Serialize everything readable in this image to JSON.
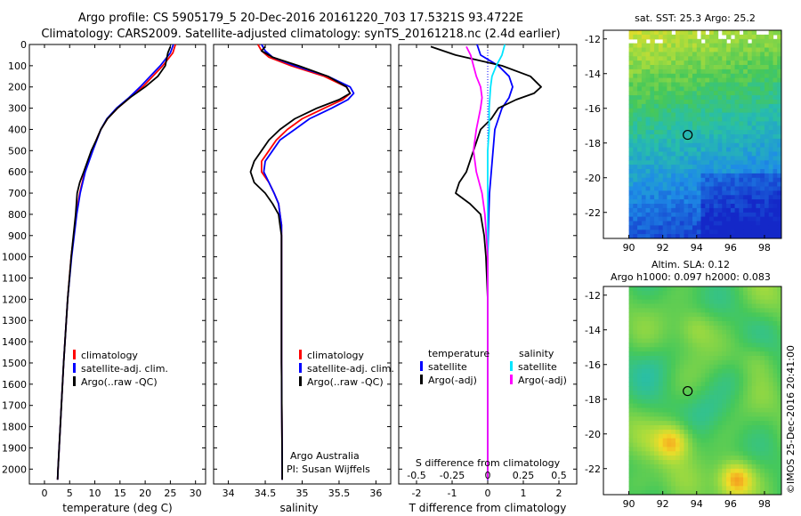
{
  "header": {
    "title_line1": "Argo profile: CS 5905179_5 20-Dec-2016 20161220_703 17.5321S 93.4722E",
    "title_line2": "Climatology: CARS2009. Satellite-adjusted climatology: synTS_20161218.nc (2.4d earlier)"
  },
  "credit": "©IMOS 25-Dec-2016 20:41:00",
  "colors": {
    "climatology": "#ff0000",
    "satellite": "#0000ff",
    "argo": "#000000",
    "sal_satellite": "#00e5ff",
    "sal_argo": "#ff00ff",
    "zero_line": "#0000ff"
  },
  "chart_data": [
    {
      "id": "temperature",
      "type": "line",
      "xlabel": "temperature (deg C)",
      "ylabel": "",
      "xlim": [
        -3,
        32
      ],
      "ylim": [
        2070,
        0
      ],
      "xticks": [
        "0",
        "5",
        "10",
        "15",
        "20",
        "25",
        "30"
      ],
      "yticks": [
        "0",
        "100",
        "200",
        "300",
        "400",
        "500",
        "600",
        "700",
        "800",
        "900",
        "1000",
        "1100",
        "1200",
        "1300",
        "1400",
        "1500",
        "1600",
        "1700",
        "1800",
        "1900",
        "2000"
      ],
      "legend": [
        "climatology",
        "satellite-adj. clim.",
        "Argo(..raw -QC)"
      ],
      "series": [
        {
          "name": "climatology",
          "color": "#ff0000",
          "depth": [
            0,
            40,
            100,
            150,
            200,
            250,
            300,
            350,
            400,
            450,
            500,
            600,
            700,
            800,
            1000,
            1200,
            1500,
            2000,
            2050
          ],
          "values": [
            26,
            25.5,
            23.5,
            21.5,
            19.5,
            17,
            14.5,
            12.5,
            11.2,
            10.3,
            9.5,
            8,
            7,
            6.3,
            5.3,
            4.6,
            3.8,
            2.7,
            2.6
          ]
        },
        {
          "name": "satellite-adj. clim.",
          "color": "#0000ff",
          "depth": [
            0,
            40,
            100,
            150,
            200,
            250,
            300,
            350,
            400,
            450,
            500,
            600,
            700,
            800,
            1000,
            1200,
            1500,
            2000,
            2050
          ],
          "values": [
            25.6,
            25,
            23,
            21,
            19,
            16.8,
            14.3,
            12.4,
            11.2,
            10.4,
            9.6,
            8.1,
            7.1,
            6.4,
            5.4,
            4.6,
            3.8,
            2.7,
            2.6
          ]
        },
        {
          "name": "Argo(..raw -QC)",
          "color": "#000000",
          "depth": [
            10,
            40,
            100,
            150,
            200,
            250,
            300,
            350,
            400,
            450,
            500,
            600,
            650,
            700,
            800,
            1000,
            1200,
            1500,
            2000,
            2050
          ],
          "values": [
            25,
            24.5,
            24,
            22.5,
            20,
            17,
            14.5,
            12.5,
            11.2,
            10.3,
            9.3,
            7.8,
            7.0,
            6.5,
            6.2,
            5.3,
            4.6,
            3.8,
            2.7,
            2.6
          ]
        }
      ]
    },
    {
      "id": "salinity",
      "type": "line",
      "xlabel": "salinity",
      "ylabel": "",
      "xlim": [
        33.8,
        36.2
      ],
      "ylim": [
        2070,
        0
      ],
      "xticks": [
        "34",
        "34.5",
        "35",
        "35.5",
        "36"
      ],
      "legend": [
        "climatology",
        "satellite-adj. clim.",
        "Argo(..raw -QC)"
      ],
      "annotation_line1": "Argo Australia",
      "annotation_line2": "PI: Susan Wijffels",
      "series": [
        {
          "name": "climatology",
          "color": "#ff0000",
          "depth": [
            0,
            30,
            60,
            100,
            150,
            200,
            230,
            260,
            300,
            350,
            400,
            450,
            500,
            550,
            600,
            650,
            700,
            750,
            800,
            850,
            900,
            1000,
            1500,
            2000,
            2050
          ],
          "values": [
            34.4,
            34.45,
            34.55,
            34.85,
            35.3,
            35.6,
            35.65,
            35.55,
            35.3,
            35.0,
            34.8,
            34.65,
            34.55,
            34.45,
            34.45,
            34.55,
            34.62,
            34.68,
            34.7,
            34.72,
            34.72,
            34.72,
            34.72,
            34.73,
            34.73
          ]
        },
        {
          "name": "satellite-adj. clim.",
          "color": "#0000ff",
          "depth": [
            0,
            30,
            60,
            100,
            150,
            200,
            230,
            260,
            300,
            350,
            400,
            450,
            500,
            550,
            600,
            650,
            700,
            750,
            800,
            850,
            900,
            1000,
            1500,
            2000,
            2050
          ],
          "values": [
            34.45,
            34.5,
            34.6,
            34.9,
            35.35,
            35.65,
            35.7,
            35.62,
            35.4,
            35.1,
            34.9,
            34.7,
            34.6,
            34.5,
            34.48,
            34.55,
            34.62,
            34.68,
            34.7,
            34.72,
            34.72,
            34.72,
            34.72,
            34.73,
            34.73
          ]
        },
        {
          "name": "Argo(..raw -QC)",
          "color": "#000000",
          "depth": [
            10,
            30,
            60,
            100,
            150,
            200,
            230,
            260,
            300,
            350,
            400,
            450,
            500,
            550,
            600,
            650,
            700,
            750,
            800,
            850,
            900,
            1000,
            1500,
            2000,
            2050
          ],
          "values": [
            34.5,
            34.45,
            34.6,
            34.95,
            35.35,
            35.6,
            35.65,
            35.5,
            35.2,
            34.9,
            34.7,
            34.55,
            34.45,
            34.35,
            34.3,
            34.35,
            34.5,
            34.6,
            34.68,
            34.7,
            34.72,
            34.72,
            34.72,
            34.73,
            34.73
          ]
        }
      ]
    },
    {
      "id": "difference",
      "type": "line",
      "xlabel": "T difference from climatology",
      "xlabel_top": "S difference from climatology",
      "xlim": [
        -2.5,
        2.5
      ],
      "ylim": [
        2070,
        0
      ],
      "xticks": [
        "-2",
        "-1",
        "0",
        "1",
        "2"
      ],
      "xticks_top": [
        "-0.5",
        "-0.25",
        "0",
        "0.25",
        "0.5"
      ],
      "legend_left_title": "temperature",
      "legend_right_title": "salinity",
      "legend": [
        "satellite",
        "Argo(-adj)",
        "satellite",
        "Argo(-adj)"
      ],
      "series": [
        {
          "name": "satellite",
          "variable": "temperature",
          "color": "#0000ff",
          "depth": [
            0,
            50,
            100,
            150,
            200,
            250,
            300,
            350,
            400,
            500,
            600,
            700,
            800,
            1000,
            1500,
            2000,
            2050
          ],
          "values": [
            -0.3,
            -0.2,
            0.3,
            0.6,
            0.7,
            0.6,
            0.4,
            0.3,
            0.2,
            0.15,
            0.1,
            0.05,
            0.03,
            0.0,
            0.0,
            0.0,
            0.0
          ]
        },
        {
          "name": "Argo(-adj)",
          "variable": "temperature",
          "color": "#000000",
          "depth": [
            10,
            50,
            100,
            150,
            200,
            230,
            260,
            300,
            350,
            400,
            500,
            600,
            650,
            700,
            750,
            800,
            900,
            1000,
            1200,
            1500,
            2000,
            2050
          ],
          "values": [
            -1.6,
            -0.9,
            0.4,
            1.2,
            1.5,
            1.3,
            0.8,
            0.3,
            0.1,
            -0.2,
            -0.4,
            -0.6,
            -0.8,
            -0.9,
            -0.5,
            -0.2,
            -0.1,
            -0.05,
            0.0,
            0.0,
            0.0,
            0.0
          ]
        },
        {
          "name": "satellite",
          "variable": "salinity",
          "color": "#00e5ff",
          "depth": [
            0,
            50,
            100,
            150,
            200,
            300,
            400,
            500,
            600,
            800,
            1000,
            1500,
            2000,
            2050
          ],
          "values": [
            0.12,
            0.1,
            0.06,
            0.03,
            0.02,
            0.01,
            0.01,
            0.0,
            0.0,
            0.0,
            0.0,
            0.0,
            0.0,
            0.0
          ]
        },
        {
          "name": "Argo(-adj)",
          "variable": "salinity",
          "color": "#ff00ff",
          "depth": [
            10,
            50,
            100,
            150,
            200,
            250,
            300,
            400,
            500,
            600,
            700,
            800,
            1000,
            1500,
            2000,
            2050
          ],
          "values": [
            -0.15,
            -0.12,
            -0.1,
            -0.08,
            -0.05,
            -0.04,
            -0.05,
            -0.08,
            -0.1,
            -0.08,
            -0.04,
            -0.02,
            0.0,
            0.0,
            0.0,
            0.0
          ]
        }
      ]
    },
    {
      "id": "sst_map",
      "type": "heatmap",
      "title": "sat. SST: 25.3 Argo: 25.2",
      "xlim": [
        88.5,
        99
      ],
      "ylim": [
        -23.5,
        -11.5
      ],
      "xticks": [
        "90",
        "92",
        "94",
        "96",
        "98"
      ],
      "yticks": [
        "-12",
        "-14",
        "-16",
        "-18",
        "-20",
        "-22"
      ],
      "argo_lon": 93.47,
      "argo_lat": -17.53
    },
    {
      "id": "sla_map",
      "type": "heatmap",
      "title_line1": "Altim. SLA: 0.12",
      "title_line2": "Argo h1000: 0.097 h2000: 0.083",
      "xlim": [
        88.5,
        99
      ],
      "ylim": [
        -23.5,
        -11.5
      ],
      "xticks": [
        "90",
        "92",
        "94",
        "96",
        "98"
      ],
      "yticks": [
        "-12",
        "-14",
        "-16",
        "-18",
        "-20",
        "-22"
      ],
      "argo_lon": 93.47,
      "argo_lat": -17.53
    }
  ]
}
